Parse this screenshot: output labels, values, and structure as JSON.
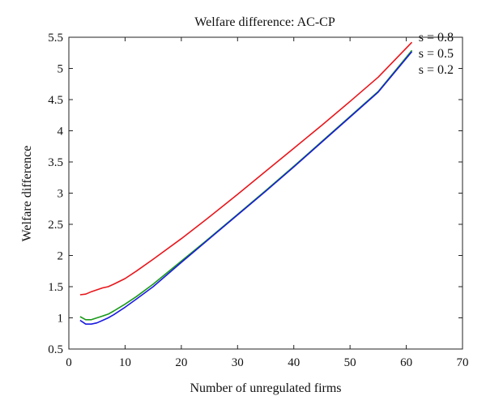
{
  "chart_data": {
    "type": "line",
    "title": "Welfare difference: AC-CP",
    "xlabel": "Number of unregulated firms",
    "ylabel": "Welfare difference",
    "xlim": [
      0,
      70
    ],
    "ylim": [
      0.5,
      5.5
    ],
    "xticks": [
      0,
      10,
      20,
      30,
      40,
      50,
      60,
      70
    ],
    "yticks": [
      0.5,
      1,
      1.5,
      2,
      2.5,
      3,
      3.5,
      4,
      4.5,
      5,
      5.5
    ],
    "xtick_labels": [
      "0",
      "10",
      "20",
      "30",
      "40",
      "50",
      "60",
      "70"
    ],
    "ytick_labels": [
      "0.5",
      "1",
      "1.5",
      "2",
      "2.5",
      "3",
      "3.5",
      "4",
      "4.5",
      "5",
      "5.5"
    ],
    "grid": false,
    "legend_position": "top-right",
    "series": [
      {
        "name": "s = 0.8",
        "color": "#e8161b",
        "x": [
          2,
          3,
          4,
          5,
          6,
          7,
          8,
          10,
          12,
          15,
          20,
          25,
          30,
          35,
          40,
          45,
          50,
          55,
          61
        ],
        "y": [
          1.37,
          1.38,
          1.42,
          1.45,
          1.48,
          1.5,
          1.54,
          1.63,
          1.75,
          1.94,
          2.27,
          2.62,
          2.98,
          3.35,
          3.72,
          4.09,
          4.47,
          4.86,
          5.42
        ]
      },
      {
        "name": "s = 0.5",
        "color": "#1a9a1a",
        "x": [
          2,
          3,
          4,
          5,
          6,
          7,
          8,
          10,
          12,
          15,
          20,
          25,
          30,
          35,
          40,
          45,
          50,
          55,
          61
        ],
        "y": [
          1.02,
          0.97,
          0.97,
          1.0,
          1.03,
          1.06,
          1.11,
          1.22,
          1.34,
          1.54,
          1.91,
          2.28,
          2.66,
          3.04,
          3.43,
          3.83,
          4.23,
          4.63,
          5.29
        ]
      },
      {
        "name": "s = 0.2",
        "color": "#1a1ae0",
        "x": [
          2,
          3,
          4,
          5,
          6,
          7,
          8,
          10,
          12,
          15,
          20,
          25,
          30,
          35,
          40,
          45,
          50,
          55,
          61
        ],
        "y": [
          0.96,
          0.9,
          0.9,
          0.92,
          0.96,
          1.0,
          1.05,
          1.17,
          1.3,
          1.5,
          1.89,
          2.27,
          2.65,
          3.03,
          3.42,
          3.82,
          4.22,
          4.62,
          5.27
        ]
      }
    ]
  }
}
